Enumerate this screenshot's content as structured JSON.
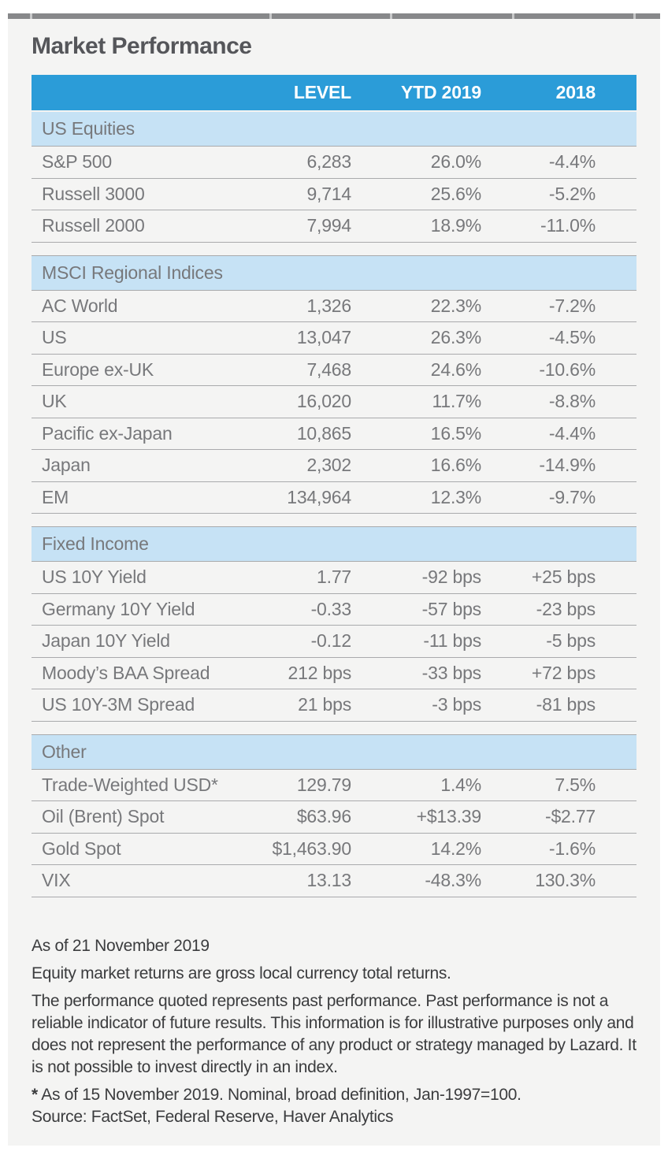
{
  "page": {
    "title": "Market Performance"
  },
  "table": {
    "columns": [
      "LEVEL",
      "YTD 2019",
      "2018"
    ],
    "sections": [
      {
        "label": "US Equities",
        "rows": [
          {
            "name": "S&P 500",
            "level": "6,283",
            "ytd_2019": "26.0%",
            "y2018": "-4.4%"
          },
          {
            "name": "Russell 3000",
            "level": "9,714",
            "ytd_2019": "25.6%",
            "y2018": "-5.2%"
          },
          {
            "name": "Russell 2000",
            "level": "7,994",
            "ytd_2019": "18.9%",
            "y2018": "-11.0%"
          }
        ]
      },
      {
        "label": "MSCI Regional Indices",
        "rows": [
          {
            "name": "AC World",
            "level": "1,326",
            "ytd_2019": "22.3%",
            "y2018": "-7.2%"
          },
          {
            "name": "US",
            "level": "13,047",
            "ytd_2019": "26.3%",
            "y2018": "-4.5%"
          },
          {
            "name": "Europe ex-UK",
            "level": "7,468",
            "ytd_2019": "24.6%",
            "y2018": "-10.6%"
          },
          {
            "name": "UK",
            "level": "16,020",
            "ytd_2019": "11.7%",
            "y2018": "-8.8%"
          },
          {
            "name": "Pacific ex-Japan",
            "level": "10,865",
            "ytd_2019": "16.5%",
            "y2018": "-4.4%"
          },
          {
            "name": "Japan",
            "level": "2,302",
            "ytd_2019": "16.6%",
            "y2018": "-14.9%"
          },
          {
            "name": "EM",
            "level": "134,964",
            "ytd_2019": "12.3%",
            "y2018": "-9.7%"
          }
        ]
      },
      {
        "label": "Fixed Income",
        "rows": [
          {
            "name": "US 10Y Yield",
            "level": "1.77",
            "ytd_2019": "-92 bps",
            "y2018": "+25 bps"
          },
          {
            "name": "Germany 10Y Yield",
            "level": "-0.33",
            "ytd_2019": "-57 bps",
            "y2018": "-23 bps"
          },
          {
            "name": "Japan 10Y Yield",
            "level": "-0.12",
            "ytd_2019": "-11 bps",
            "y2018": "-5 bps"
          },
          {
            "name": "Moody’s BAA Spread",
            "level": "212 bps",
            "ytd_2019": "-33 bps",
            "y2018": "+72 bps"
          },
          {
            "name": "US 10Y-3M Spread",
            "level": "21 bps",
            "ytd_2019": "-3 bps",
            "y2018": "-81 bps"
          }
        ]
      },
      {
        "label": "Other",
        "rows": [
          {
            "name": "Trade-Weighted USD*",
            "level": "129.79",
            "ytd_2019": "1.4%",
            "y2018": "7.5%"
          },
          {
            "name": "Oil (Brent) Spot",
            "level": "$63.96",
            "ytd_2019": "+$13.39",
            "y2018": "-$2.77"
          },
          {
            "name": "Gold Spot",
            "level": "$1,463.90",
            "ytd_2019": "14.2%",
            "y2018": "-1.6%"
          },
          {
            "name": "VIX",
            "level": "13.13",
            "ytd_2019": "-48.3%",
            "y2018": "130.3%"
          }
        ]
      }
    ]
  },
  "footnotes": {
    "as_of": "As of 21 November 2019",
    "returns_note": "Equity market returns are gross local currency total returns.",
    "disclaimer": "The performance quoted represents past performance. Past performance is not a reliable indicator of future results. This information is for illustrative purposes only and does not represent the performance of any product or strategy managed by Lazard. It is not possible to invest directly in an index.",
    "asterisk": "*",
    "asterisk_note": " As of 15 November 2019. Nominal, broad definition, Jan-1997=100.",
    "source": "Source: FactSet, Federal Reserve, Haver Analytics"
  },
  "colors": {
    "header_blue": "#2B9CD8",
    "section_blue": "#C6E2F5",
    "card_bg": "#F4F4F3",
    "row_text": "#77787B",
    "title_text": "#55565A",
    "footnote_text": "#3B3C3E",
    "top_bar": "#87888A",
    "top_bar_notch": "#C8C9CA",
    "divider": "#A9AAAC"
  }
}
